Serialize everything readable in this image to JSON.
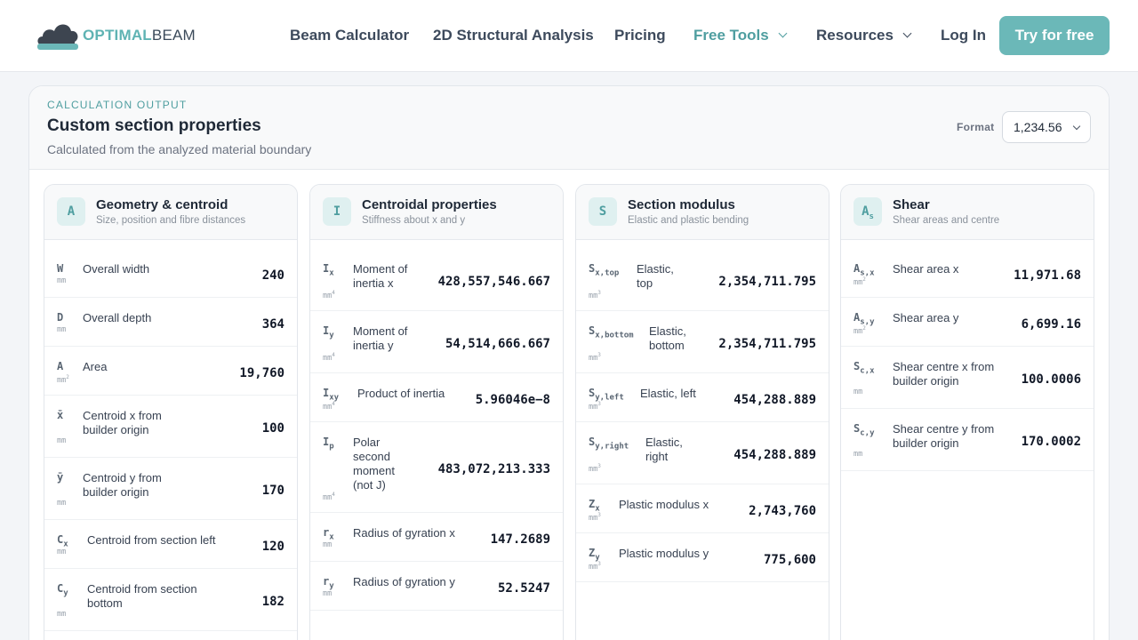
{
  "brand": {
    "logo_a": "OPTIMAL",
    "logo_b": "BEAM",
    "accent": "#6bb8b8"
  },
  "nav": {
    "beam_calculator": "Beam Calculator",
    "structural_analysis": "2D Structural Analysis",
    "pricing": "Pricing",
    "free_tools": "Free Tools",
    "resources": "Resources",
    "login": "Log In",
    "cta": "Try for free"
  },
  "output": {
    "eyebrow": "CALCULATION OUTPUT",
    "title": "Custom section properties",
    "subtitle": "Calculated from the analyzed material boundary",
    "format_label": "Format",
    "format_value": "1,234.56"
  },
  "panels": [
    {
      "badge": "A",
      "title": "Geometry & centroid",
      "subtitle": "Size, position and fibre distances",
      "rows": [
        {
          "sym": "W",
          "sub": "",
          "label": "Overall width",
          "unit": "mm",
          "sup": "",
          "value": "240"
        },
        {
          "sym": "D",
          "sub": "",
          "label": "Overall depth",
          "unit": "mm",
          "sup": "",
          "value": "364"
        },
        {
          "sym": "A",
          "sub": "",
          "label": "Area",
          "unit": "mm",
          "sup": "2",
          "value": "19,760"
        },
        {
          "sym": "x̄",
          "sub": "",
          "label": "Centroid x from builder origin",
          "unit": "mm",
          "sup": "",
          "value": "100"
        },
        {
          "sym": "ȳ",
          "sub": "",
          "label": "Centroid y from builder origin",
          "unit": "mm",
          "sup": "",
          "value": "170"
        },
        {
          "sym": "C",
          "sub": "x",
          "label": "Centroid from section left",
          "unit": "mm",
          "sup": "",
          "value": "120"
        },
        {
          "sym": "C",
          "sub": "y",
          "label": "Centroid from section bottom",
          "unit": "mm",
          "sup": "",
          "value": "182"
        }
      ]
    },
    {
      "badge": "I",
      "title": "Centroidal properties",
      "subtitle": "Stiffness about x and y",
      "rows": [
        {
          "sym": "I",
          "sub": "x",
          "label": "Moment of inertia x",
          "unit": "mm",
          "sup": "4",
          "value": "428,557,546.667"
        },
        {
          "sym": "I",
          "sub": "y",
          "label": "Moment of inertia y",
          "unit": "mm",
          "sup": "4",
          "value": "54,514,666.667"
        },
        {
          "sym": "I",
          "sub": "xy",
          "label": "Product of inertia",
          "unit": "mm",
          "sup": "4",
          "value": "5.96046e−8"
        },
        {
          "sym": "I",
          "sub": "p",
          "label": "Polar second moment (not J)",
          "unit": "mm",
          "sup": "4",
          "value": "483,072,213.333"
        },
        {
          "sym": "r",
          "sub": "x",
          "label": "Radius of gyration x",
          "unit": "mm",
          "sup": "",
          "value": "147.2689"
        },
        {
          "sym": "r",
          "sub": "y",
          "label": "Radius of gyration y",
          "unit": "mm",
          "sup": "",
          "value": "52.5247"
        }
      ]
    },
    {
      "badge": "S",
      "title": "Section modulus",
      "subtitle": "Elastic and plastic bending",
      "rows": [
        {
          "sym": "S",
          "sub": "x,top",
          "label": "Elastic, top",
          "unit": "mm",
          "sup": "3",
          "value": "2,354,711.795"
        },
        {
          "sym": "S",
          "sub": "x,bottom",
          "label": "Elastic, bottom",
          "unit": "mm",
          "sup": "3",
          "value": "2,354,711.795"
        },
        {
          "sym": "S",
          "sub": "y,left",
          "label": "Elastic, left",
          "unit": "mm",
          "sup": "3",
          "value": "454,288.889"
        },
        {
          "sym": "S",
          "sub": "y,right",
          "label": "Elastic, right",
          "unit": "mm",
          "sup": "3",
          "value": "454,288.889"
        },
        {
          "sym": "Z",
          "sub": "x",
          "label": "Plastic modulus x",
          "unit": "mm",
          "sup": "3",
          "value": "2,743,760"
        },
        {
          "sym": "Z",
          "sub": "y",
          "label": "Plastic modulus y",
          "unit": "mm",
          "sup": "3",
          "value": "775,600"
        }
      ]
    },
    {
      "badge": "A",
      "badge_sub": "s",
      "title": "Shear",
      "subtitle": "Shear areas and centre",
      "rows": [
        {
          "sym": "A",
          "sub": "s,x",
          "label": "Shear area x",
          "unit": "mm",
          "sup": "2",
          "value": "11,971.68"
        },
        {
          "sym": "A",
          "sub": "s,y",
          "label": "Shear area y",
          "unit": "mm",
          "sup": "2",
          "value": "6,699.16"
        },
        {
          "sym": "S",
          "sub": "c,x",
          "label": "Shear centre x from builder origin",
          "unit": "mm",
          "sup": "",
          "value": "100.0006"
        },
        {
          "sym": "S",
          "sub": "c,y",
          "label": "Shear centre y from builder origin",
          "unit": "mm",
          "sup": "",
          "value": "170.0002"
        }
      ]
    }
  ]
}
